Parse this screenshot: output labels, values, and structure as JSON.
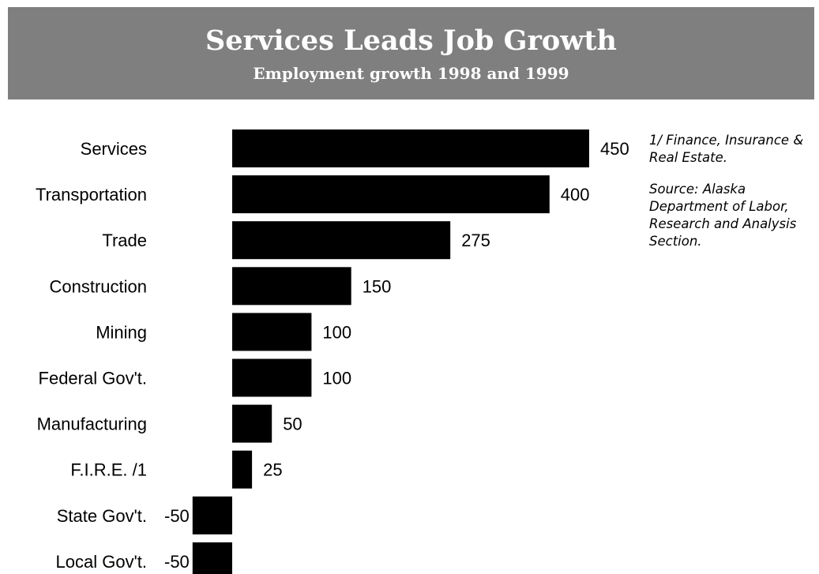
{
  "header": {
    "title": "Services Leads Job Growth",
    "subtitle": "Employment growth 1998 and 1999"
  },
  "notes": {
    "footnote": "1/ Finance, Insurance & Real Estate.",
    "source": "Source: Alaska Department of Labor, Research and Analysis Section."
  },
  "colors": {
    "header_bg": "#7f7f7f",
    "bar": "#000000"
  },
  "chart_data": {
    "type": "bar",
    "orientation": "horizontal",
    "title": "Services Leads Job Growth",
    "subtitle": "Employment growth 1998 and 1999",
    "categories": [
      "Services",
      "Transportation",
      "Trade",
      "Construction",
      "Mining",
      "Federal Gov't.",
      "Manufacturing",
      "F.I.R.E. /1",
      "State Gov't.",
      "Local Gov't."
    ],
    "values": [
      450,
      400,
      275,
      150,
      100,
      100,
      50,
      25,
      -50,
      -50
    ],
    "xlabel": "",
    "ylabel": "",
    "grid": false,
    "legend": "none"
  }
}
